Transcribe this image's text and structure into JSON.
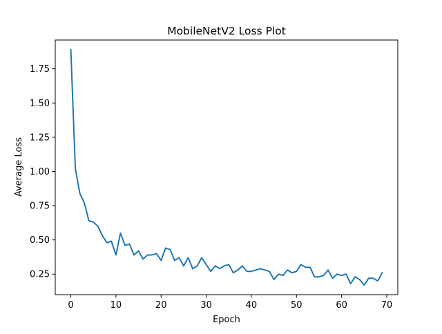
{
  "chart_data": {
    "type": "line",
    "title": "MobileNetV2 Loss Plot",
    "xlabel": "Epoch",
    "ylabel": "Average Loss",
    "xlim": [
      -3.45,
      72.45
    ],
    "ylim": [
      0.1,
      1.96
    ],
    "xticks": [
      0,
      10,
      20,
      30,
      40,
      50,
      60,
      70
    ],
    "yticks": [
      0.25,
      0.5,
      0.75,
      1.0,
      1.25,
      1.5,
      1.75
    ],
    "ytick_labels": [
      "0.25",
      "0.50",
      "0.75",
      "1.00",
      "1.25",
      "1.50",
      "1.75"
    ],
    "grid": false,
    "legend": "none",
    "series": [
      {
        "color": "#1f77b4",
        "x": [
          0,
          1,
          2,
          3,
          4,
          5,
          6,
          7,
          8,
          9,
          10,
          11,
          12,
          13,
          14,
          15,
          16,
          17,
          18,
          19,
          20,
          21,
          22,
          23,
          24,
          25,
          26,
          27,
          28,
          29,
          30,
          31,
          32,
          33,
          34,
          35,
          36,
          37,
          38,
          39,
          40,
          41,
          42,
          43,
          44,
          45,
          46,
          47,
          48,
          49,
          50,
          51,
          52,
          53,
          54,
          55,
          56,
          57,
          58,
          59,
          60,
          61,
          62,
          63,
          64,
          65,
          66,
          67,
          68,
          69
        ],
        "values": [
          1.89,
          1.02,
          0.84,
          0.77,
          0.64,
          0.63,
          0.6,
          0.53,
          0.48,
          0.49,
          0.39,
          0.55,
          0.46,
          0.47,
          0.39,
          0.42,
          0.36,
          0.39,
          0.39,
          0.4,
          0.35,
          0.44,
          0.43,
          0.35,
          0.37,
          0.31,
          0.37,
          0.29,
          0.31,
          0.37,
          0.32,
          0.27,
          0.31,
          0.29,
          0.31,
          0.32,
          0.26,
          0.28,
          0.31,
          0.27,
          0.27,
          0.28,
          0.29,
          0.28,
          0.27,
          0.21,
          0.25,
          0.24,
          0.28,
          0.26,
          0.27,
          0.32,
          0.3,
          0.3,
          0.23,
          0.23,
          0.24,
          0.28,
          0.22,
          0.25,
          0.24,
          0.25,
          0.18,
          0.23,
          0.21,
          0.17,
          0.22,
          0.22,
          0.2,
          0.26
        ]
      }
    ]
  }
}
